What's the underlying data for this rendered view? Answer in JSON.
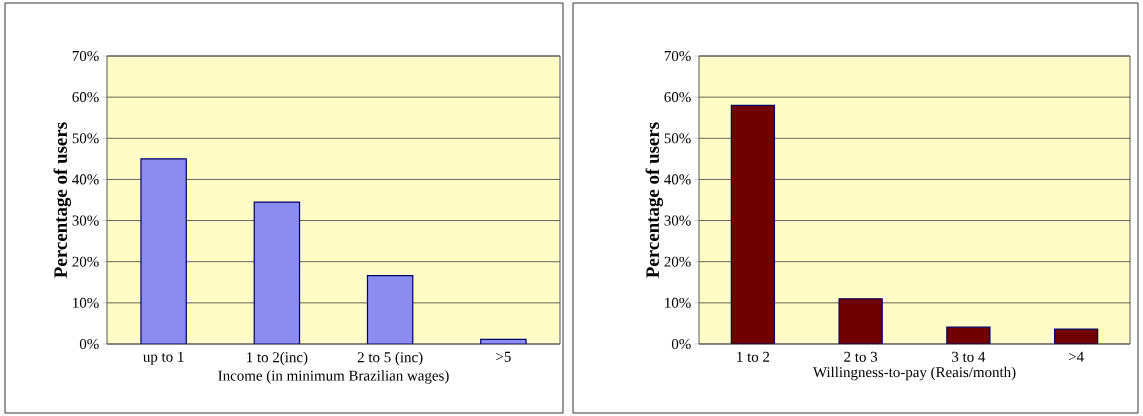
{
  "chart_data": [
    {
      "type": "bar",
      "xlabel": "Income (in minimum Brazilian wages)",
      "ylabel": "Percentage of users",
      "categories": [
        "up to 1",
        "1 to 2(inc)",
        "2 to 5 (inc)",
        ">5"
      ],
      "values": [
        45,
        34.5,
        16.6,
        1.1
      ],
      "color": "#8c8cf0",
      "ylim": [
        0,
        70
      ],
      "yticks": [
        {
          "value": 0,
          "label": "0%"
        },
        {
          "value": 10,
          "label": "10%"
        },
        {
          "value": 20,
          "label": "20%"
        },
        {
          "value": 30,
          "label": "30%"
        },
        {
          "value": 40,
          "label": "40%"
        },
        {
          "value": 50,
          "label": "50%"
        },
        {
          "value": 60,
          "label": "60%"
        },
        {
          "value": 70,
          "label": "70%"
        }
      ],
      "grid": "y"
    },
    {
      "type": "bar",
      "xlabel": "Willingness-to-pay (Reais/month)",
      "ylabel": "Percentage of users",
      "categories": [
        "1 to 2",
        "2 to 3",
        "3 to 4",
        ">4"
      ],
      "values": [
        58,
        11,
        4.1,
        3.6
      ],
      "color": "#700000",
      "ylim": [
        0,
        70
      ],
      "yticks": [
        {
          "value": 0,
          "label": "0%"
        },
        {
          "value": 10,
          "label": "10%"
        },
        {
          "value": 20,
          "label": "20%"
        },
        {
          "value": 30,
          "label": "30%"
        },
        {
          "value": 40,
          "label": "40%"
        },
        {
          "value": 50,
          "label": "50%"
        },
        {
          "value": 60,
          "label": "60%"
        },
        {
          "value": 70,
          "label": "70%"
        }
      ],
      "grid": "y"
    }
  ]
}
